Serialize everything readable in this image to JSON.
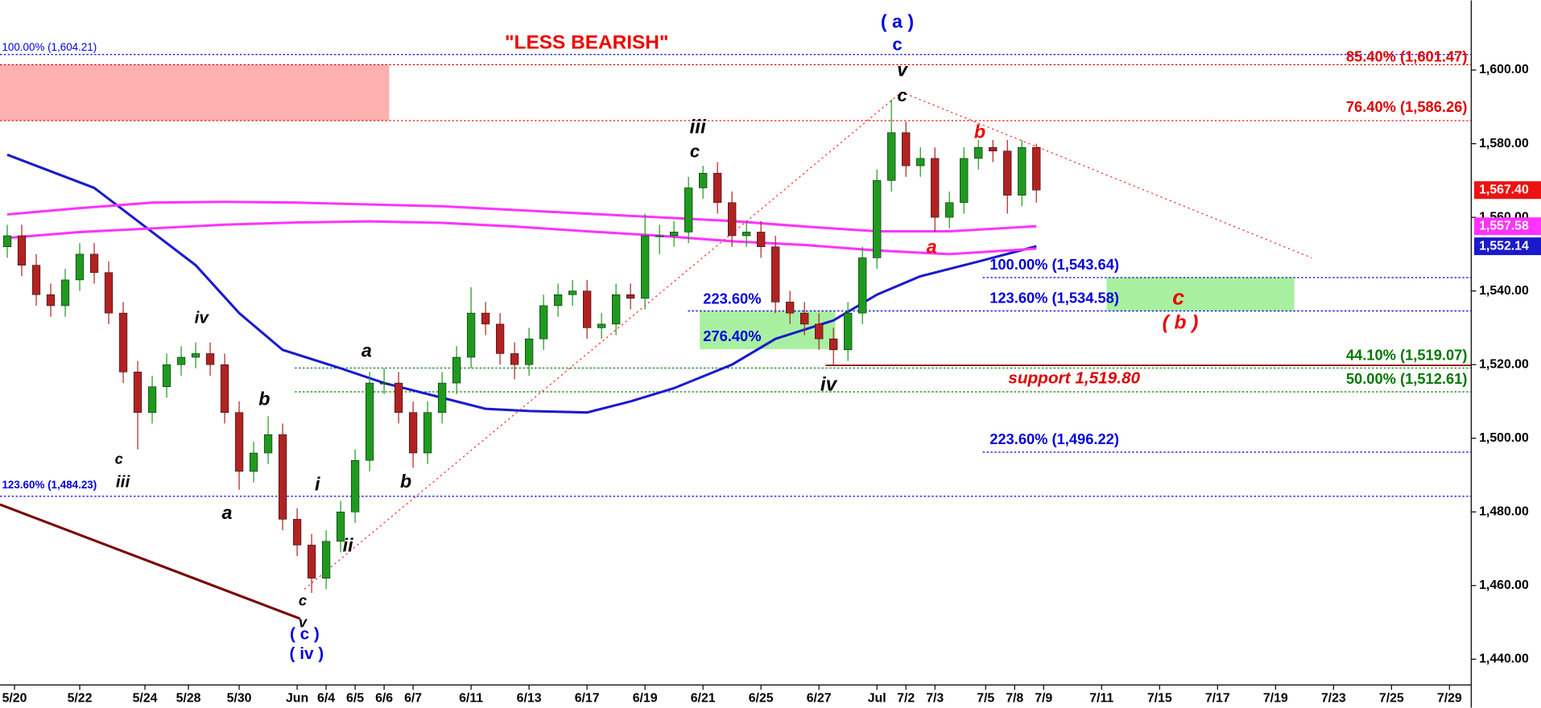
{
  "chart_data": {
    "type": "candlestick",
    "x": [
      0,
      1,
      2,
      3,
      4,
      5,
      6,
      7,
      8,
      9,
      10,
      11,
      12,
      13,
      14,
      15,
      16,
      17,
      18,
      19,
      20,
      21,
      22,
      23,
      24,
      25,
      26,
      27,
      28,
      29,
      30,
      31,
      32,
      33,
      34,
      35,
      36,
      37,
      38,
      39,
      40,
      41,
      42,
      43,
      44,
      45,
      46,
      47,
      48,
      49,
      50,
      51,
      52,
      53,
      54,
      55,
      56,
      57,
      58,
      59,
      60,
      61,
      62,
      63,
      64,
      65,
      66,
      67,
      68,
      69,
      70,
      71
    ],
    "open": [
      1552,
      1555,
      1547,
      1539,
      1536,
      1543,
      1550,
      1545,
      1534,
      1518,
      1507,
      1514,
      1520,
      1522,
      1523,
      1520,
      1507,
      1491,
      1496,
      1501,
      1478,
      1471,
      1462,
      1472,
      1480,
      1494,
      1515,
      1515,
      1507,
      1496,
      1507,
      1515,
      1522,
      1534,
      1531,
      1523,
      1520,
      1527,
      1536,
      1539,
      1540,
      1530,
      1531,
      1539,
      1538,
      1555,
      1555,
      1556,
      1568,
      1572,
      1564,
      1555,
      1556,
      1552,
      1537,
      1534,
      1531,
      1527,
      1524,
      1534,
      1549,
      1570,
      1583,
      1574,
      1576,
      1560,
      1564,
      1576,
      1579,
      1578,
      1566,
      1579
    ],
    "high": [
      1558,
      1558,
      1550,
      1542,
      1546,
      1553,
      1553,
      1548,
      1537,
      1521,
      1517,
      1523,
      1525,
      1526,
      1526,
      1523,
      1510,
      1499,
      1506,
      1504,
      1481,
      1474,
      1475,
      1483,
      1497,
      1518,
      1519,
      1518,
      1510,
      1510,
      1518,
      1525,
      1541,
      1537,
      1534,
      1526,
      1530,
      1539,
      1542,
      1543,
      1543,
      1534,
      1542,
      1542,
      1561,
      1558,
      1559,
      1571,
      1574,
      1575,
      1567,
      1559,
      1559,
      1555,
      1540,
      1537,
      1534,
      1530,
      1537,
      1552,
      1573,
      1592,
      1586,
      1579,
      1579,
      1567,
      1579,
      1581,
      1581,
      1581,
      1581,
      1580
    ],
    "low": [
      1549,
      1544,
      1536,
      1533,
      1533,
      1540,
      1542,
      1531,
      1515,
      1497,
      1504,
      1511,
      1517,
      1519,
      1517,
      1504,
      1486,
      1488,
      1493,
      1475,
      1468,
      1458,
      1459,
      1469,
      1477,
      1491,
      1512,
      1504,
      1492,
      1493,
      1504,
      1512,
      1519,
      1528,
      1520,
      1516,
      1517,
      1524,
      1533,
      1536,
      1527,
      1527,
      1528,
      1535,
      1535,
      1550,
      1552,
      1553,
      1565,
      1561,
      1552,
      1552,
      1549,
      1534,
      1531,
      1528,
      1524,
      1520,
      1521,
      1531,
      1546,
      1567,
      1571,
      1571,
      1556,
      1557,
      1561,
      1573,
      1575,
      1561,
      1563,
      1564
    ],
    "close": [
      1555,
      1547,
      1539,
      1536,
      1543,
      1550,
      1545,
      1534,
      1518,
      1507,
      1514,
      1520,
      1522,
      1523,
      1520,
      1507,
      1491,
      1496,
      1501,
      1478,
      1471,
      1462,
      1472,
      1480,
      1494,
      1515,
      1515,
      1507,
      1496,
      1507,
      1515,
      1522,
      1534,
      1531,
      1523,
      1520,
      1527,
      1536,
      1539,
      1540,
      1530,
      1531,
      1539,
      1538,
      1555,
      1555,
      1556,
      1568,
      1572,
      1564,
      1555,
      1556,
      1552,
      1537,
      1534,
      1531,
      1527,
      1524,
      1534,
      1549,
      1570,
      1583,
      1574,
      1576,
      1560,
      1564,
      1576,
      1579,
      1578,
      1566,
      1579,
      1567.4
    ],
    "up_color": "#1f9a1f",
    "down_color": "#b22222",
    "xlim": [
      -0.5,
      101
    ],
    "ylim": [
      1433,
      1618.9
    ],
    "xticks": [
      {
        "value": 0.5,
        "label": "5/20"
      },
      {
        "value": 5,
        "label": "5/22"
      },
      {
        "value": 9.5,
        "label": "5/24"
      },
      {
        "value": 12.5,
        "label": "5/28"
      },
      {
        "value": 16,
        "label": "5/30"
      },
      {
        "value": 20,
        "label": "Jun"
      },
      {
        "value": 22,
        "label": "6/4"
      },
      {
        "value": 24,
        "label": "6/5"
      },
      {
        "value": 26,
        "label": "6/6"
      },
      {
        "value": 28,
        "label": "6/7"
      },
      {
        "value": 32,
        "label": "6/11"
      },
      {
        "value": 36,
        "label": "6/13"
      },
      {
        "value": 40,
        "label": "6/17"
      },
      {
        "value": 44,
        "label": "6/19"
      },
      {
        "value": 48,
        "label": "6/21"
      },
      {
        "value": 52,
        "label": "6/25"
      },
      {
        "value": 56,
        "label": "6/27"
      },
      {
        "value": 60,
        "label": "Jul"
      },
      {
        "value": 62,
        "label": "7/2"
      },
      {
        "value": 64,
        "label": "7/3"
      },
      {
        "value": 67.5,
        "label": "7/5"
      },
      {
        "value": 69.5,
        "label": "7/8"
      },
      {
        "value": 71.5,
        "label": "7/9"
      },
      {
        "value": 75.5,
        "label": "7/11"
      },
      {
        "value": 79.5,
        "label": "7/15"
      },
      {
        "value": 83.5,
        "label": "7/17"
      },
      {
        "value": 87.5,
        "label": "7/19"
      },
      {
        "value": 91.5,
        "label": "7/23"
      },
      {
        "value": 95.5,
        "label": "7/25"
      },
      {
        "value": 99.5,
        "label": "7/29"
      }
    ],
    "yticks": [
      {
        "value": 1440,
        "label": "1,440.00"
      },
      {
        "value": 1460,
        "label": "1,460.00"
      },
      {
        "value": 1480,
        "label": "1,480.00"
      },
      {
        "value": 1500,
        "label": "1,500.00"
      },
      {
        "value": 1520,
        "label": "1,520.00"
      },
      {
        "value": 1540,
        "label": "1,540.00"
      },
      {
        "value": 1560,
        "label": "1,560.00"
      },
      {
        "value": 1580,
        "label": "1,580.00"
      },
      {
        "value": 1600,
        "label": "1,600.00"
      }
    ],
    "lines": [
      {
        "color": "#1a1acc",
        "x": [
          0,
          6,
          9,
          13,
          16,
          19,
          23,
          26,
          30,
          33,
          36,
          40,
          43,
          46,
          50,
          53,
          57,
          60,
          63,
          67,
          71
        ],
        "values": [
          1577,
          1568,
          1559,
          1547,
          1534,
          1524,
          1519,
          1515,
          1511,
          1508,
          1507.4,
          1507,
          1510,
          1513.6,
          1520,
          1527,
          1532,
          1539,
          1544,
          1548,
          1552.14
        ]
      },
      {
        "color": "#ff33ff",
        "x": [
          0,
          5,
          10,
          15,
          20,
          25,
          30,
          35,
          40,
          45,
          50,
          55,
          60,
          65,
          71
        ],
        "values": [
          1560.8,
          1562.5,
          1564,
          1564.2,
          1564,
          1563.5,
          1563,
          1562,
          1561,
          1560,
          1559,
          1557.5,
          1556.2,
          1556.2,
          1557.58
        ]
      },
      {
        "color": "#ff33ff",
        "x": [
          0,
          5,
          10,
          15,
          20,
          25,
          30,
          35,
          40,
          45,
          50,
          55,
          60,
          65,
          71
        ],
        "values": [
          1554.4,
          1556,
          1557,
          1558,
          1558.6,
          1558.9,
          1558.5,
          1557.5,
          1556.2,
          1555,
          1553.5,
          1552.5,
          1551,
          1550,
          1551.5
        ]
      },
      {
        "color": "#7a0000",
        "x": [
          -0.5,
          20.2
        ],
        "values": [
          1482,
          1451
        ]
      },
      {
        "color": "#ff3333",
        "x": [
          20.5,
          61.7,
          90
        ],
        "values": [
          1459,
          1594,
          1549
        ]
      }
    ],
    "levels": [
      {
        "value": 1604.21,
        "label": "100.00% (1,604.21)",
        "color": "#0000dd"
      },
      {
        "value": 1601.47,
        "label": "85.40% (1,601.47)",
        "color": "#e00000"
      },
      {
        "value": 1586.26,
        "label": "76.40% (1,586.26)",
        "color": "#e00000"
      },
      {
        "value": 1543.64,
        "label": "100.00% (1,543.64)",
        "color": "#0000dd"
      },
      {
        "value": 1534.58,
        "label": "123.60% (1,534.58)",
        "color": "#0000dd"
      },
      {
        "value": 1519.07,
        "label": "44.10% (1,519.07)",
        "color": "#007700"
      },
      {
        "value": 1512.61,
        "label": "50.00% (1,512.61)",
        "color": "#007700"
      },
      {
        "value": 1496.22,
        "label": "223.60% (1,496.22)",
        "color": "#0000dd"
      },
      {
        "value": 1484.23,
        "label": "123.60% (1,484.23)",
        "color": "#0000dd"
      },
      {
        "value": 1519.8,
        "label": "support 1,519.80",
        "color": "#dd0000"
      }
    ],
    "zones": [
      {
        "y": [
          1586.26,
          1601.47
        ],
        "color": "#ffb0b0"
      },
      {
        "y": [
          1524.2,
          1534.58
        ],
        "color": "#a8f0a0"
      },
      {
        "y": [
          1534.58,
          1543.64
        ],
        "color": "#a8f0a0"
      }
    ],
    "price_labels": [
      {
        "value": 1567.4,
        "label": "1,567.40",
        "color": "#ee1111"
      },
      {
        "value": 1557.58,
        "label": "1,557.58",
        "color": "#ff33ff"
      },
      {
        "value": 1552.14,
        "label": "1,552.14",
        "color": "#1a1acc"
      }
    ],
    "annotations": [
      {
        "text": "\"LESS BEARISH\"",
        "color": "#ee0000"
      },
      {
        "text": "( a )",
        "color": "#0000dd"
      },
      {
        "text": "c",
        "color": "#0000dd"
      },
      {
        "text": "v",
        "color": "#000000"
      },
      {
        "text": "c",
        "color": "#000000"
      },
      {
        "text": "iii",
        "color": "#000000"
      },
      {
        "text": "c",
        "color": "#000000"
      },
      {
        "text": "b",
        "color": "#ee0000"
      },
      {
        "text": "a",
        "color": "#ee0000"
      },
      {
        "text": "c",
        "color": "#ee0000"
      },
      {
        "text": "( b )",
        "color": "#ee0000"
      },
      {
        "text": "iv",
        "color": "#000000"
      },
      {
        "text": "a",
        "color": "#000000"
      },
      {
        "text": "b",
        "color": "#000000"
      },
      {
        "text": "iv",
        "color": "#000000"
      },
      {
        "text": "c",
        "color": "#000000"
      },
      {
        "text": "iii",
        "color": "#000000"
      },
      {
        "text": "a",
        "color": "#000000"
      },
      {
        "text": "i",
        "color": "#000000"
      },
      {
        "text": "ii",
        "color": "#000000"
      },
      {
        "text": "b",
        "color": "#000000"
      },
      {
        "text": "c",
        "color": "#000000"
      },
      {
        "text": "v",
        "color": "#000000"
      },
      {
        "text": "( c )",
        "color": "#0000dd"
      },
      {
        "text": "( iv )",
        "color": "#0000dd"
      },
      {
        "text": "223.60%",
        "color": "#0000dd"
      },
      {
        "text": "276.40%",
        "color": "#0000dd"
      }
    ]
  }
}
